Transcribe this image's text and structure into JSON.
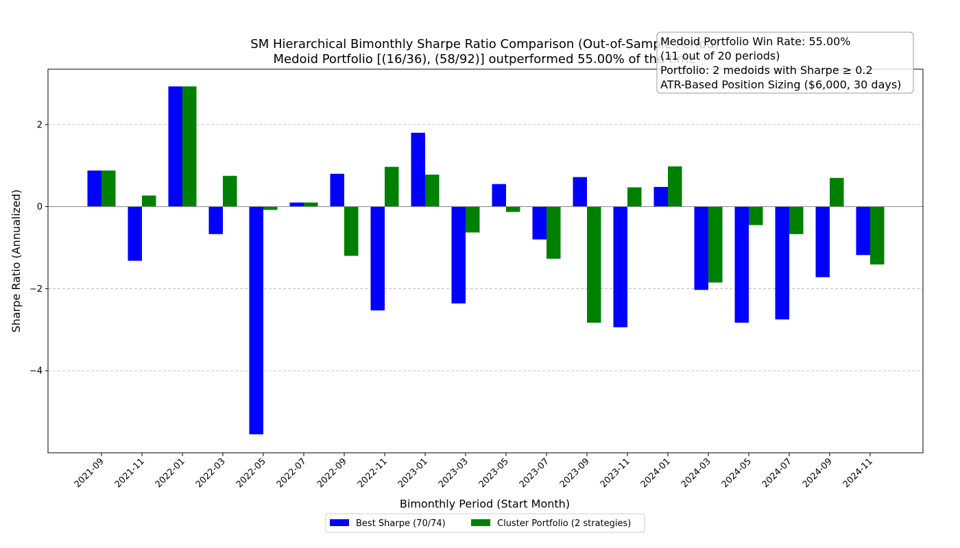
{
  "chart_data": {
    "type": "bar",
    "title": "SM Hierarchical Bimonthly Sharpe Ratio Comparison (Out-of-Sample Period)",
    "subtitle": "Medoid Portfolio [(16/36), (58/92)] outperformed 55.00% of the time",
    "xlabel": "Bimonthly Period (Start Month)",
    "ylabel": "Sharpe Ratio (Annualized)",
    "ylim": [
      -6.0,
      3.35
    ],
    "yticks": [
      -4,
      -2,
      0,
      2
    ],
    "ytick_labels": [
      "−4",
      "−2",
      "0",
      "2"
    ],
    "grid": "y-dashed",
    "legend_position": "bottom-center",
    "categories": [
      "2021-09",
      "2021-11",
      "2022-01",
      "2022-03",
      "2022-05",
      "2022-07",
      "2022-09",
      "2022-11",
      "2023-01",
      "2023-03",
      "2023-05",
      "2023-07",
      "2023-09",
      "2023-11",
      "2024-01",
      "2024-03",
      "2024-05",
      "2024-07",
      "2024-09",
      "2024-11"
    ],
    "series": [
      {
        "name": "Best Sharpe (70/74)",
        "color": "#0000ff",
        "values": [
          0.88,
          -1.32,
          2.93,
          -0.67,
          -5.55,
          0.1,
          0.8,
          -2.53,
          1.8,
          -2.36,
          0.55,
          -0.8,
          0.72,
          -2.94,
          0.48,
          -2.03,
          -2.83,
          -2.75,
          -1.72,
          -1.18
        ]
      },
      {
        "name": "Cluster Portfolio (2 strategies)",
        "color": "#008000",
        "values": [
          0.88,
          0.27,
          2.93,
          0.75,
          -0.08,
          0.1,
          -1.2,
          0.97,
          0.78,
          -0.63,
          -0.13,
          -1.27,
          -2.83,
          0.47,
          0.98,
          -1.85,
          -0.45,
          -0.67,
          0.7,
          -1.41
        ]
      }
    ],
    "annotation": {
      "lines": [
        "Medoid Portfolio Win Rate: 55.00%",
        "(11 out of 20 periods)",
        "Portfolio: 2 medoids with Sharpe ≥ 0.2",
        "ATR-Based Position Sizing ($6,000, 30 days)"
      ]
    }
  }
}
